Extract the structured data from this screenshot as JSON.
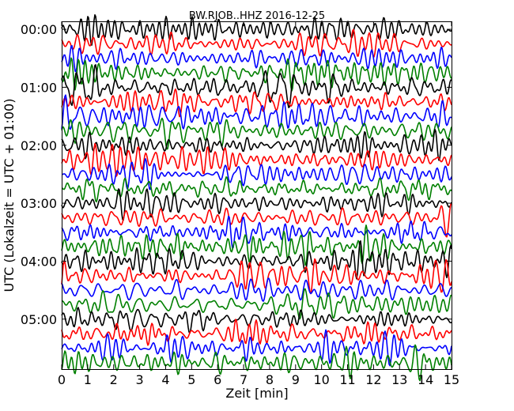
{
  "chart_data": {
    "type": "line",
    "title": "BW.RJOB..HHZ 2016-12-25",
    "xlabel": "Zeit  [min]",
    "ylabel": "UTC (Lokalzeit = UTC + 01:00)",
    "xlim": [
      0,
      15
    ],
    "x_ticks": [
      "0",
      "1",
      "2",
      "3",
      "4",
      "5",
      "6",
      "7",
      "8",
      "9",
      "10",
      "11",
      "12",
      "13",
      "14",
      "15"
    ],
    "y_ticks": [
      "00:00",
      "01:00",
      "02:00",
      "03:00",
      "04:00",
      "05:00"
    ],
    "interval_minutes": 15,
    "trace_count": 24,
    "trace_colors": [
      "#000000",
      "#ff0000",
      "#0000ff",
      "#008000"
    ],
    "grid": false
  }
}
